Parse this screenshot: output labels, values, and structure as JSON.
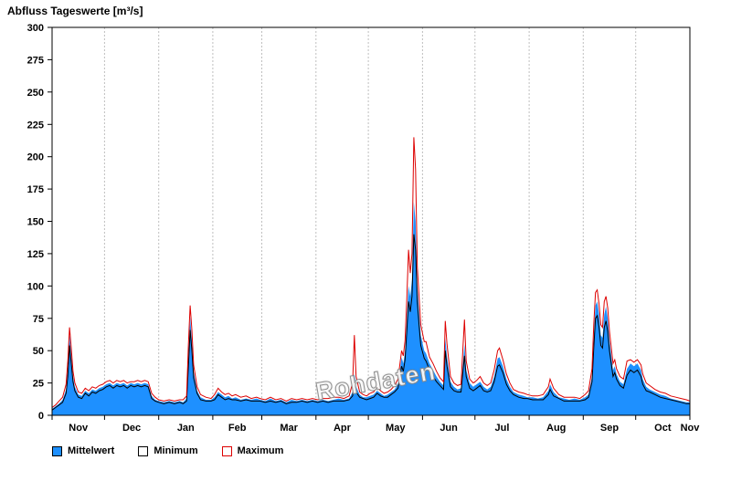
{
  "title": "Abfluss Tageswerte [m³/s]",
  "watermark": "Rohdaten",
  "legend": [
    {
      "label": "Mittelwert",
      "swatch_fill": "#1e90ff",
      "swatch_border": "#000000"
    },
    {
      "label": "Minimum",
      "swatch_fill": "#ffffff",
      "swatch_border": "#000000"
    },
    {
      "label": "Maximum",
      "swatch_fill": "#ffffff",
      "swatch_border": "#dd0000"
    }
  ],
  "chart_data": {
    "type": "area",
    "title": "Abfluss Tageswerte [m³/s]",
    "x_axis": {
      "span_days": 365,
      "tick_labels": [
        "Nov",
        "Dec",
        "Jan",
        "Feb",
        "Mar",
        "Apr",
        "May",
        "Jun",
        "Jul",
        "Aug",
        "Sep",
        "Oct",
        "Nov"
      ],
      "month_boundaries_days": [
        0,
        30,
        61,
        92,
        120,
        151,
        181,
        212,
        242,
        273,
        304,
        334,
        365
      ],
      "grid": true
    },
    "y_axis": {
      "label": "m³/s",
      "ticks": [
        0,
        25,
        50,
        75,
        100,
        125,
        150,
        175,
        200,
        225,
        250,
        275,
        300
      ],
      "ylim": [
        0,
        300
      ],
      "grid": false
    },
    "series": [
      {
        "name": "Mittelwert",
        "style": "area",
        "color": "#1e90ff"
      },
      {
        "name": "Minimum",
        "style": "line",
        "color": "#000000"
      },
      {
        "name": "Maximum",
        "style": "line",
        "color": "#dd0000"
      }
    ],
    "days": [
      0,
      2,
      4,
      6,
      8,
      9,
      10,
      11,
      12,
      13,
      15,
      17,
      19,
      21,
      23,
      25,
      27,
      29,
      31,
      33,
      35,
      37,
      39,
      41,
      43,
      45,
      47,
      49,
      51,
      53,
      55,
      57,
      59,
      61,
      64,
      67,
      70,
      73,
      75,
      77,
      78,
      79,
      80,
      81,
      83,
      85,
      88,
      91,
      93,
      95,
      97,
      99,
      101,
      103,
      105,
      108,
      111,
      114,
      117,
      119,
      122,
      125,
      128,
      131,
      134,
      137,
      140,
      143,
      146,
      149,
      152,
      155,
      158,
      161,
      164,
      167,
      170,
      172,
      173,
      174,
      176,
      178,
      180,
      182,
      184,
      186,
      188,
      190,
      192,
      194,
      196,
      198,
      200,
      201,
      202,
      203,
      204,
      205,
      206,
      207,
      208,
      209,
      210,
      211,
      213,
      214,
      216,
      218,
      220,
      222,
      224,
      225,
      226,
      228,
      230,
      232,
      234,
      236,
      237,
      239,
      241,
      243,
      245,
      247,
      249,
      251,
      253,
      255,
      256,
      258,
      260,
      262,
      264,
      267,
      270,
      272,
      275,
      278,
      281,
      284,
      285,
      287,
      290,
      293,
      296,
      299,
      302,
      305,
      307,
      309,
      310,
      311,
      312,
      313,
      314,
      315,
      316,
      317,
      318,
      319,
      321,
      322,
      323,
      325,
      327,
      329,
      331,
      333,
      335,
      337,
      338,
      340,
      342,
      345,
      348,
      351,
      354,
      357,
      360,
      363,
      365
    ],
    "mean": [
      5,
      7,
      9,
      12,
      20,
      35,
      62,
      46,
      30,
      22,
      16,
      15,
      19,
      17,
      20,
      19,
      21,
      22,
      24,
      25,
      23,
      25,
      24,
      25,
      23,
      25,
      24,
      25,
      24,
      25,
      24,
      15,
      12,
      11,
      10,
      11,
      10,
      11,
      10,
      13,
      45,
      76,
      58,
      34,
      19,
      14,
      12,
      12,
      14,
      18,
      16,
      14,
      15,
      13,
      14,
      12,
      13,
      12,
      13,
      12,
      11,
      13,
      11,
      12,
      10,
      12,
      11,
      12,
      11,
      12,
      11,
      12,
      11,
      12,
      13,
      12,
      13,
      18,
      32,
      22,
      16,
      14,
      14,
      15,
      16,
      19,
      17,
      15,
      16,
      18,
      20,
      24,
      45,
      40,
      50,
      75,
      100,
      92,
      105,
      165,
      150,
      100,
      80,
      62,
      50,
      48,
      40,
      35,
      30,
      26,
      23,
      60,
      45,
      26,
      22,
      20,
      21,
      55,
      35,
      25,
      22,
      24,
      26,
      22,
      20,
      22,
      30,
      44,
      45,
      38,
      28,
      22,
      18,
      16,
      15,
      14,
      14,
      13,
      14,
      19,
      24,
      18,
      14,
      13,
      12,
      13,
      12,
      14,
      16,
      30,
      60,
      85,
      88,
      78,
      62,
      60,
      78,
      84,
      75,
      58,
      35,
      38,
      32,
      26,
      24,
      36,
      40,
      38,
      40,
      35,
      28,
      22,
      20,
      18,
      16,
      15,
      13,
      12,
      11,
      10,
      10
    ],
    "min": [
      4,
      6,
      8,
      10,
      17,
      30,
      54,
      40,
      26,
      19,
      14,
      13,
      17,
      15,
      18,
      17,
      19,
      20,
      22,
      23,
      21,
      23,
      22,
      23,
      21,
      23,
      22,
      23,
      22,
      23,
      22,
      13,
      11,
      10,
      9,
      10,
      9,
      10,
      9,
      11,
      38,
      66,
      50,
      29,
      17,
      12,
      11,
      11,
      12,
      16,
      14,
      12,
      13,
      12,
      12,
      11,
      12,
      11,
      11,
      11,
      10,
      11,
      10,
      11,
      9,
      10,
      10,
      11,
      10,
      11,
      10,
      11,
      10,
      11,
      11,
      11,
      12,
      15,
      26,
      18,
      14,
      13,
      12,
      13,
      14,
      17,
      15,
      14,
      14,
      16,
      18,
      21,
      38,
      34,
      43,
      65,
      88,
      80,
      92,
      140,
      128,
      88,
      70,
      54,
      44,
      42,
      35,
      30,
      26,
      23,
      20,
      50,
      38,
      22,
      19,
      18,
      18,
      46,
      30,
      21,
      19,
      21,
      23,
      19,
      18,
      19,
      26,
      38,
      39,
      33,
      24,
      19,
      16,
      14,
      13,
      13,
      12,
      12,
      12,
      16,
      20,
      15,
      13,
      11,
      11,
      11,
      11,
      12,
      14,
      26,
      52,
      75,
      77,
      68,
      54,
      52,
      68,
      73,
      65,
      50,
      30,
      33,
      28,
      23,
      21,
      31,
      35,
      33,
      35,
      30,
      24,
      19,
      18,
      16,
      14,
      13,
      12,
      11,
      10,
      9,
      9
    ],
    "max": [
      6,
      8,
      11,
      14,
      24,
      42,
      68,
      52,
      34,
      25,
      18,
      17,
      21,
      19,
      22,
      21,
      23,
      24,
      26,
      27,
      25,
      27,
      26,
      27,
      25,
      26,
      26,
      27,
      26,
      27,
      26,
      17,
      14,
      12,
      11,
      12,
      11,
      12,
      12,
      15,
      55,
      85,
      66,
      39,
      22,
      16,
      14,
      13,
      16,
      21,
      18,
      16,
      17,
      15,
      16,
      14,
      15,
      13,
      14,
      13,
      12,
      14,
      12,
      13,
      11,
      13,
      12,
      13,
      12,
      13,
      12,
      13,
      13,
      14,
      14,
      13,
      15,
      25,
      62,
      30,
      18,
      16,
      15,
      17,
      18,
      22,
      19,
      17,
      18,
      20,
      23,
      28,
      50,
      46,
      58,
      90,
      128,
      110,
      125,
      215,
      190,
      115,
      92,
      70,
      57,
      57,
      45,
      40,
      34,
      29,
      26,
      73,
      55,
      30,
      25,
      23,
      24,
      74,
      42,
      28,
      25,
      27,
      30,
      25,
      23,
      25,
      35,
      50,
      52,
      43,
      32,
      25,
      20,
      18,
      17,
      16,
      15,
      15,
      16,
      22,
      28,
      21,
      16,
      14,
      14,
      14,
      13,
      16,
      19,
      36,
      70,
      95,
      97,
      86,
      70,
      68,
      88,
      92,
      83,
      65,
      40,
      43,
      36,
      30,
      28,
      42,
      43,
      41,
      43,
      39,
      32,
      25,
      23,
      20,
      18,
      17,
      15,
      14,
      13,
      12,
      11
    ]
  }
}
